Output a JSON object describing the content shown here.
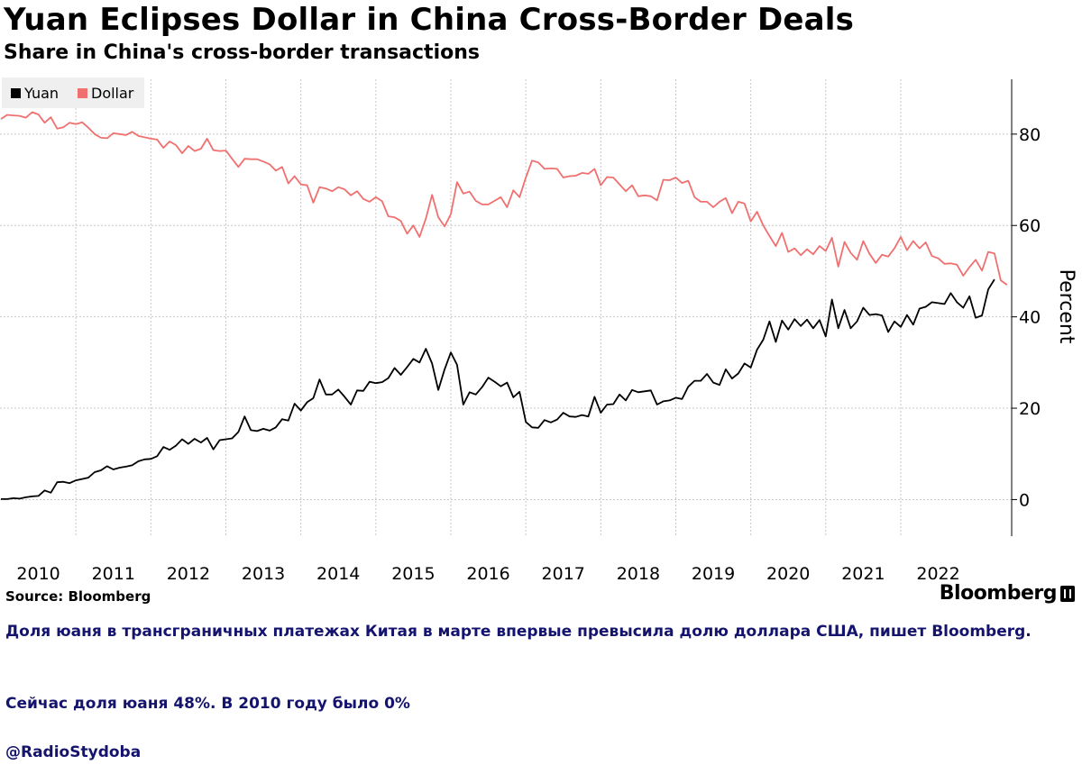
{
  "header": {
    "title": "Yuan Eclipses Dollar in China Cross-Border Deals",
    "subtitle": "Share in China's cross-border transactions"
  },
  "footer": {
    "source": "Source:  Bloomberg",
    "brand": "Bloomberg"
  },
  "caption": {
    "line1": "Доля юаня в трансграничных платежах Китая в марте впервые превысила долю доллара США, пишет Bloomberg.",
    "line2": "Сейчас доля юаня 48%. В 2010 году было 0%",
    "line3": "@RadioStydoba"
  },
  "colors": {
    "yuan": "#000000",
    "dollar": "#f07070",
    "grid": "#c8c8c8",
    "caption": "#14146e"
  },
  "chart_data": {
    "type": "line",
    "title": "Yuan Eclipses Dollar in China Cross-Border Deals",
    "subtitle": "Share in China's cross-border transactions",
    "ylabel": "Percent",
    "ylim": [
      -8,
      92
    ],
    "yticks": [
      0,
      20,
      40,
      60,
      80
    ],
    "x_tick_labels": [
      "2010",
      "2011",
      "2012",
      "2013",
      "2014",
      "2015",
      "2016",
      "2017",
      "2018",
      "2019",
      "2020",
      "2021",
      "2022"
    ],
    "x_start": "2010-01",
    "x_end": "2023-03",
    "legend": "top-left",
    "grid": true,
    "series": [
      {
        "name": "Yuan",
        "values": [
          0.1,
          0.1,
          0.3,
          0.2,
          0.5,
          0.7,
          0.8,
          2.0,
          1.5,
          3.8,
          3.9,
          3.6,
          4.2,
          4.5,
          4.8,
          6.0,
          6.4,
          7.3,
          6.6,
          7.0,
          7.2,
          7.5,
          8.4,
          8.8,
          8.9,
          9.5,
          11.5,
          10.9,
          11.8,
          13.2,
          12.2,
          13.3,
          12.5,
          13.5,
          11.0,
          13.0,
          13.2,
          13.4,
          14.8,
          18.2,
          15.2,
          15.0,
          15.5,
          15.1,
          15.8,
          17.6,
          17.3,
          21.0,
          19.5,
          21.3,
          22.2,
          26.3,
          23.0,
          23.0,
          24.1,
          22.5,
          20.8,
          23.9,
          23.8,
          25.8,
          25.5,
          25.7,
          26.6,
          28.8,
          27.3,
          29.0,
          30.8,
          30.0,
          33.0,
          29.8,
          24.0,
          28.5,
          32.2,
          29.5,
          20.8,
          23.5,
          23.0,
          24.6,
          26.7,
          25.8,
          24.8,
          25.6,
          22.4,
          23.6,
          17.0,
          15.8,
          15.7,
          17.4,
          16.9,
          17.5,
          19.0,
          18.2,
          18.1,
          18.5,
          18.2,
          22.5,
          19.0,
          20.8,
          20.9,
          23.0,
          21.7,
          24.0,
          23.5,
          23.7,
          23.9,
          20.8,
          21.5,
          21.7,
          22.3,
          22.0,
          24.7,
          26.0,
          26.0,
          27.5,
          25.6,
          25.1,
          28.5,
          26.5,
          27.6,
          29.8,
          28.9,
          32.8,
          35.0,
          39.0,
          34.5,
          39.2,
          37.2,
          39.5,
          38.0,
          39.4,
          37.5,
          39.3,
          35.7,
          43.8,
          37.5,
          41.5,
          37.5,
          39.0,
          42.0,
          40.4,
          40.6,
          40.3,
          36.7,
          39.0,
          37.8,
          40.4,
          38.3,
          41.8,
          42.2,
          43.2,
          43.0,
          42.8,
          45.2,
          43.2,
          42.0,
          44.5,
          39.8,
          40.3,
          46.0,
          48.2
        ]
      },
      {
        "name": "Dollar",
        "values": [
          83.3,
          84.2,
          84.1,
          84.0,
          83.6,
          84.8,
          84.3,
          82.5,
          83.7,
          81.2,
          81.5,
          82.5,
          82.2,
          82.6,
          81.4,
          80.0,
          79.2,
          79.1,
          80.2,
          80.0,
          79.8,
          80.5,
          79.6,
          79.3,
          79.0,
          78.8,
          77.0,
          78.4,
          77.6,
          75.8,
          77.4,
          76.3,
          76.8,
          79.0,
          76.5,
          76.3,
          76.4,
          74.6,
          72.8,
          74.6,
          74.5,
          74.5,
          74.0,
          73.4,
          72.0,
          72.8,
          69.2,
          70.8,
          69.0,
          68.8,
          65.0,
          68.4,
          68.1,
          67.5,
          68.4,
          67.9,
          66.6,
          67.5,
          65.8,
          65.2,
          66.2,
          65.3,
          62.0,
          61.8,
          61.0,
          58.2,
          60.0,
          57.5,
          61.5,
          66.7,
          61.8,
          59.8,
          62.5,
          69.5,
          67.0,
          67.4,
          65.4,
          64.6,
          64.6,
          65.4,
          66.2,
          64.0,
          67.7,
          66.2,
          70.5,
          74.2,
          73.8,
          72.4,
          72.5,
          72.4,
          70.5,
          70.8,
          70.9,
          71.5,
          71.3,
          72.4,
          68.8,
          70.6,
          70.5,
          69.0,
          67.5,
          68.8,
          66.4,
          66.6,
          66.4,
          65.5,
          70.0,
          69.9,
          70.5,
          69.3,
          69.8,
          66.2,
          65.2,
          65.2,
          64.0,
          65.2,
          66.0,
          62.7,
          65.2,
          64.8,
          60.9,
          63.0,
          60.0,
          57.7,
          55.5,
          58.4,
          54.2,
          55.0,
          53.5,
          54.8,
          53.7,
          55.5,
          54.4,
          57.3,
          51.0,
          56.4,
          54.0,
          52.5,
          56.6,
          53.8,
          51.8,
          53.6,
          53.2,
          55.0,
          57.5,
          54.6,
          56.6,
          55.0,
          56.3,
          53.3,
          52.8,
          51.6,
          51.7,
          51.4,
          49.0,
          50.9,
          52.5,
          50.1,
          54.2,
          53.9,
          48.0,
          47.0
        ]
      }
    ]
  }
}
